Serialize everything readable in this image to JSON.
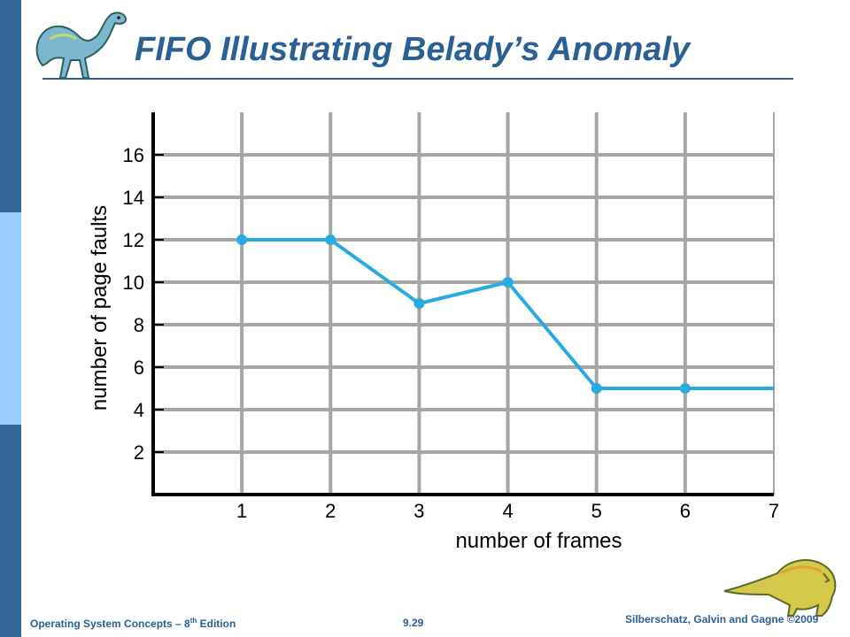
{
  "slide": {
    "title": "FIFO Illustrating Belady’s Anomaly",
    "footer_left_text": "Operating System Concepts – 8",
    "footer_left_sup": "th",
    "footer_left_suffix": " Edition",
    "page_number": "9.29",
    "footer_right": "Silberschatz, Galvin and Gagne ©2009"
  },
  "colors": {
    "accent": "#2a6094",
    "bar_dark": "#336699",
    "bar_light": "#99ccff",
    "series": "#29abe2",
    "grid": "#a6a6a6"
  },
  "icons": {
    "top_left": "dinosaur-icon",
    "bottom_right": "dinosaur-icon"
  },
  "chart_data": {
    "type": "line",
    "title": "",
    "xlabel": "number of frames",
    "ylabel": "number of page faults",
    "x": [
      1,
      2,
      3,
      4,
      5,
      6,
      7
    ],
    "series": [
      {
        "values": [
          12,
          12,
          9,
          10,
          5,
          5,
          5
        ],
        "markers": [
          true,
          true,
          true,
          true,
          true,
          true,
          false
        ]
      }
    ],
    "xlim": [
      0,
      7
    ],
    "ylim": [
      0,
      18
    ],
    "xticks": [
      "1",
      "2",
      "3",
      "4",
      "5",
      "6",
      "7"
    ],
    "yticks": [
      "2",
      "4",
      "6",
      "8",
      "10",
      "12",
      "14",
      "16"
    ],
    "grid": true,
    "legend": "none"
  }
}
